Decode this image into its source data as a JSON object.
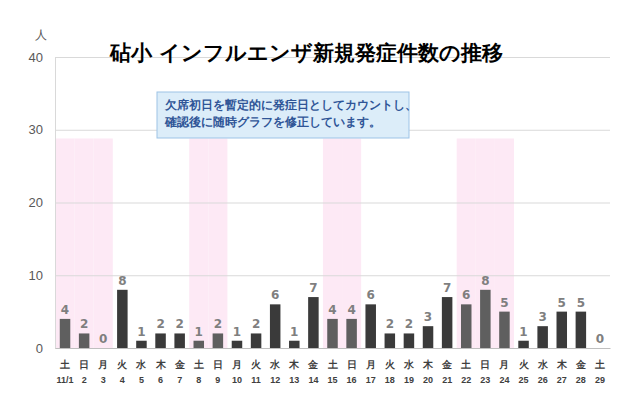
{
  "chart_data": {
    "type": "bar",
    "title": "砧小 インフルエンザ新規発症件数の推移",
    "y_label": "人",
    "annotation": "欠席初日を暫定的に発症日としてカウントし、\n確認後に随時グラフを修正しています。",
    "categories": [
      "11/1",
      "2",
      "3",
      "4",
      "5",
      "6",
      "7",
      "8",
      "9",
      "10",
      "11",
      "12",
      "13",
      "14",
      "15",
      "16",
      "17",
      "18",
      "19",
      "20",
      "21",
      "22",
      "23",
      "24",
      "25",
      "26",
      "27",
      "28",
      "29"
    ],
    "weekdays": [
      "土",
      "日",
      "月",
      "火",
      "水",
      "木",
      "金",
      "土",
      "日",
      "月",
      "火",
      "水",
      "木",
      "金",
      "土",
      "日",
      "月",
      "火",
      "水",
      "木",
      "金",
      "土",
      "日",
      "月",
      "火",
      "水",
      "木",
      "金",
      "土"
    ],
    "values": [
      4,
      2,
      0,
      8,
      1,
      2,
      2,
      1,
      2,
      1,
      2,
      6,
      1,
      7,
      4,
      4,
      6,
      2,
      2,
      3,
      7,
      6,
      8,
      5,
      1,
      3,
      5,
      5,
      0
    ],
    "colors": [
      "#5f5f5f",
      "#5f5f5f",
      "#5f5f5f",
      "#3a3a3a",
      "#3a3a3a",
      "#3a3a3a",
      "#3a3a3a",
      "#5f5f5f",
      "#5f5f5f",
      "#3a3a3a",
      "#3a3a3a",
      "#3a3a3a",
      "#3a3a3a",
      "#3a3a3a",
      "#5f5f5f",
      "#5f5f5f",
      "#3a3a3a",
      "#3a3a3a",
      "#3a3a3a",
      "#3a3a3a",
      "#3a3a3a",
      "#5f5f5f",
      "#5f5f5f",
      "#5f5f5f",
      "#3a3a3a",
      "#3a3a3a",
      "#3a3a3a",
      "#3a3a3a",
      "#3a3a3a"
    ],
    "ylim": [
      0,
      40
    ],
    "yticks": [
      0,
      10,
      20,
      30,
      40
    ],
    "grid": true,
    "data_labels": true
  }
}
